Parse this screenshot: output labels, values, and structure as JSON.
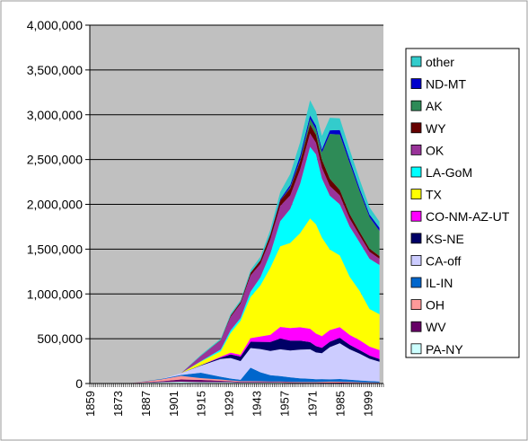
{
  "chart_data": {
    "type": "area",
    "stacked": true,
    "title": "",
    "xlabel": "",
    "ylabel": "",
    "ylim": [
      0,
      4000000
    ],
    "xlim": [
      1859,
      2007
    ],
    "grid": true,
    "legend_position": "right",
    "plot_background": "#c0c0c0",
    "y_ticks": [
      0,
      500000,
      1000000,
      1500000,
      2000000,
      2500000,
      3000000,
      3500000,
      4000000
    ],
    "y_tick_labels": [
      "0",
      "500,000",
      "1,000,000",
      "1,500,000",
      "2,000,000",
      "2,500,000",
      "3,000,000",
      "3,500,000",
      "4,000,000"
    ],
    "x_tick_labels": [
      "1859",
      "1873",
      "1887",
      "1901",
      "1915",
      "1929",
      "1943",
      "1957",
      "1971",
      "1985",
      "1999"
    ],
    "x": [
      1859,
      1880,
      1895,
      1905,
      1915,
      1925,
      1930,
      1935,
      1940,
      1945,
      1950,
      1955,
      1960,
      1965,
      1970,
      1973,
      1976,
      1980,
      1985,
      1990,
      1995,
      2000,
      2005
    ],
    "legend": [
      "other",
      "ND-MT",
      "AK",
      "WY",
      "OK",
      "LA-GoM",
      "TX",
      "CO-NM-AZ-UT",
      "KS-NE",
      "CA-off",
      "IL-IN",
      "OH",
      "WV",
      "PA-NY"
    ],
    "series": [
      {
        "name": "PA-NY",
        "color": "#ccffff",
        "values": [
          0,
          5000,
          15000,
          20000,
          15000,
          15000,
          15000,
          10000,
          10000,
          10000,
          10000,
          10000,
          8000,
          8000,
          7000,
          7000,
          6000,
          6000,
          5000,
          5000,
          4000,
          4000,
          4000
        ]
      },
      {
        "name": "WV",
        "color": "#660066",
        "values": [
          0,
          0,
          10000,
          25000,
          25000,
          15000,
          10000,
          8000,
          8000,
          8000,
          7000,
          6000,
          6000,
          5000,
          5000,
          5000,
          5000,
          5000,
          5000,
          4000,
          4000,
          3000,
          3000
        ]
      },
      {
        "name": "OH",
        "color": "#ff9999",
        "values": [
          0,
          0,
          20000,
          40000,
          20000,
          15000,
          10000,
          8000,
          8000,
          7000,
          6000,
          6000,
          5000,
          5000,
          5000,
          5000,
          8000,
          10000,
          10000,
          8000,
          6000,
          5000,
          4000
        ]
      },
      {
        "name": "IL-IN",
        "color": "#0066cc",
        "values": [
          0,
          0,
          5000,
          10000,
          60000,
          30000,
          20000,
          15000,
          150000,
          100000,
          70000,
          60000,
          50000,
          40000,
          35000,
          30000,
          30000,
          25000,
          30000,
          25000,
          20000,
          15000,
          12000
        ]
      },
      {
        "name": "CA-off",
        "color": "#ccccff",
        "values": [
          0,
          0,
          0,
          20000,
          80000,
          200000,
          230000,
          210000,
          220000,
          260000,
          270000,
          300000,
          300000,
          320000,
          330000,
          300000,
          290000,
          360000,
          400000,
          340000,
          300000,
          250000,
          220000
        ]
      },
      {
        "name": "KS-NE",
        "color": "#000066",
        "values": [
          0,
          0,
          0,
          0,
          5000,
          15000,
          40000,
          50000,
          70000,
          80000,
          100000,
          120000,
          110000,
          100000,
          80000,
          70000,
          60000,
          60000,
          60000,
          50000,
          40000,
          35000,
          30000
        ]
      },
      {
        "name": "CO-NM-AZ-UT",
        "color": "#ff00ff",
        "values": [
          0,
          0,
          0,
          0,
          0,
          10000,
          20000,
          20000,
          40000,
          60000,
          80000,
          130000,
          140000,
          150000,
          150000,
          140000,
          130000,
          130000,
          120000,
          110000,
          110000,
          100000,
          100000
        ]
      },
      {
        "name": "TX",
        "color": "#ffff00",
        "values": [
          0,
          0,
          0,
          0,
          40000,
          60000,
          220000,
          380000,
          460000,
          570000,
          750000,
          900000,
          950000,
          1050000,
          1230000,
          1220000,
          1100000,
          900000,
          800000,
          650000,
          550000,
          420000,
          400000
        ]
      },
      {
        "name": "LA-GoM",
        "color": "#00ffff",
        "values": [
          0,
          0,
          0,
          0,
          5000,
          20000,
          30000,
          30000,
          60000,
          90000,
          160000,
          280000,
          380000,
          550000,
          800000,
          780000,
          660000,
          600000,
          570000,
          560000,
          540000,
          560000,
          550000
        ]
      },
      {
        "name": "OK",
        "color": "#993399",
        "values": [
          0,
          0,
          0,
          0,
          60000,
          100000,
          150000,
          160000,
          180000,
          150000,
          160000,
          170000,
          150000,
          160000,
          150000,
          130000,
          120000,
          110000,
          100000,
          90000,
          80000,
          80000,
          70000
        ]
      },
      {
        "name": "WY",
        "color": "#660000",
        "values": [
          0,
          0,
          0,
          0,
          0,
          5000,
          15000,
          20000,
          30000,
          40000,
          50000,
          60000,
          80000,
          90000,
          100000,
          90000,
          90000,
          80000,
          60000,
          50000,
          40000,
          35000,
          30000
        ]
      },
      {
        "name": "AK",
        "color": "#2e8b57",
        "values": [
          0,
          0,
          0,
          0,
          0,
          0,
          0,
          0,
          0,
          0,
          0,
          0,
          10000,
          15000,
          60000,
          60000,
          80000,
          500000,
          620000,
          570000,
          450000,
          350000,
          280000
        ]
      },
      {
        "name": "ND-MT",
        "color": "#0000cc",
        "values": [
          0,
          0,
          0,
          0,
          0,
          0,
          0,
          0,
          0,
          0,
          5000,
          15000,
          30000,
          50000,
          40000,
          40000,
          35000,
          40000,
          50000,
          40000,
          35000,
          30000,
          35000
        ]
      },
      {
        "name": "other",
        "color": "#33cccc",
        "values": [
          0,
          0,
          0,
          0,
          10000,
          15000,
          20000,
          20000,
          30000,
          40000,
          50000,
          80000,
          120000,
          150000,
          170000,
          160000,
          150000,
          140000,
          130000,
          110000,
          100000,
          80000,
          70000
        ]
      }
    ]
  }
}
